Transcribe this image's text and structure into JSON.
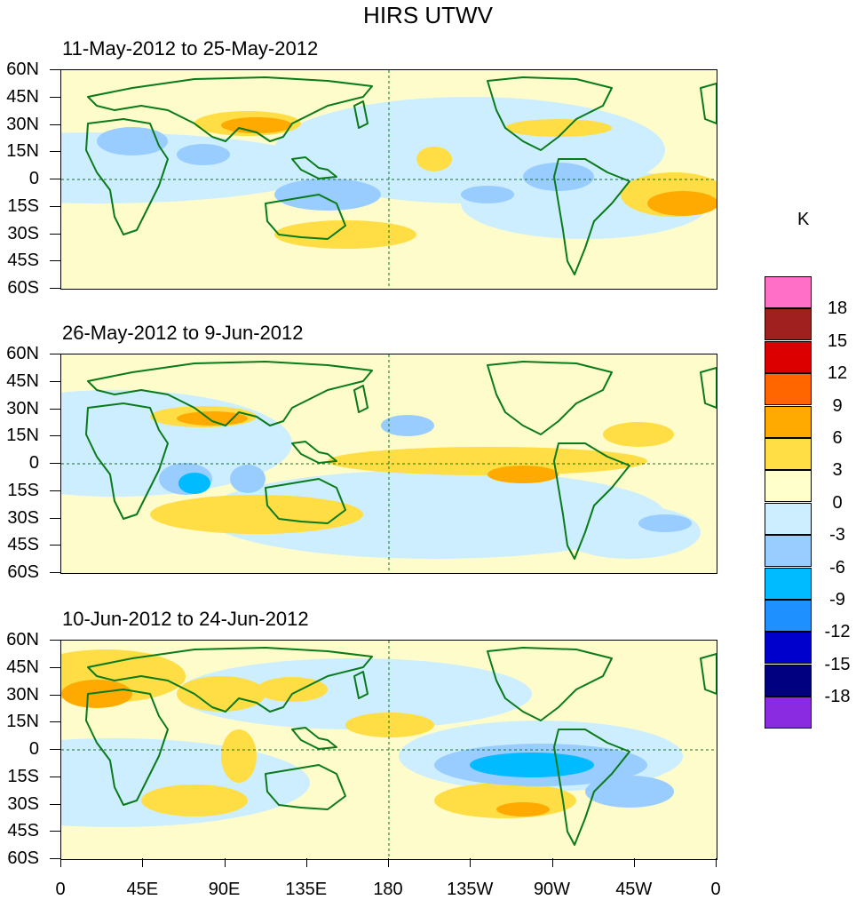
{
  "title": "HIRS UTWV",
  "panels": [
    {
      "label": "11-May-2012 to 25-May-2012"
    },
    {
      "label": "26-May-2012 to 9-Jun-2012"
    },
    {
      "label": "10-Jun-2012 to 24-Jun-2012"
    }
  ],
  "lat_labels": [
    "60N",
    "45N",
    "30N",
    "15N",
    "0",
    "15S",
    "30S",
    "45S",
    "60S"
  ],
  "lon_labels": [
    "0",
    "45E",
    "90E",
    "135E",
    "180",
    "135W",
    "90W",
    "45W",
    "0"
  ],
  "colorbar": {
    "unit": "K",
    "labels": [
      "18",
      "15",
      "12",
      "9",
      "6",
      "3",
      "0",
      "-3",
      "-6",
      "-9",
      "-12",
      "-15",
      "-18"
    ],
    "colors": [
      "#ff6ec7",
      "#a02020",
      "#dd0000",
      "#ff6600",
      "#ffaa00",
      "#ffdd44",
      "#ffffcc",
      "#cceeff",
      "#99ccff",
      "#00bbff",
      "#1e90ff",
      "#0000cc",
      "#000080",
      "#8a2be2"
    ]
  },
  "palette": {
    "land": "#0a7a1a",
    "positive": "#ffdd44",
    "strong_positive": "#ffaa00",
    "negative": "#99ccff",
    "weak_negative": "#cceeff",
    "strong_negative": "#00bbff"
  }
}
